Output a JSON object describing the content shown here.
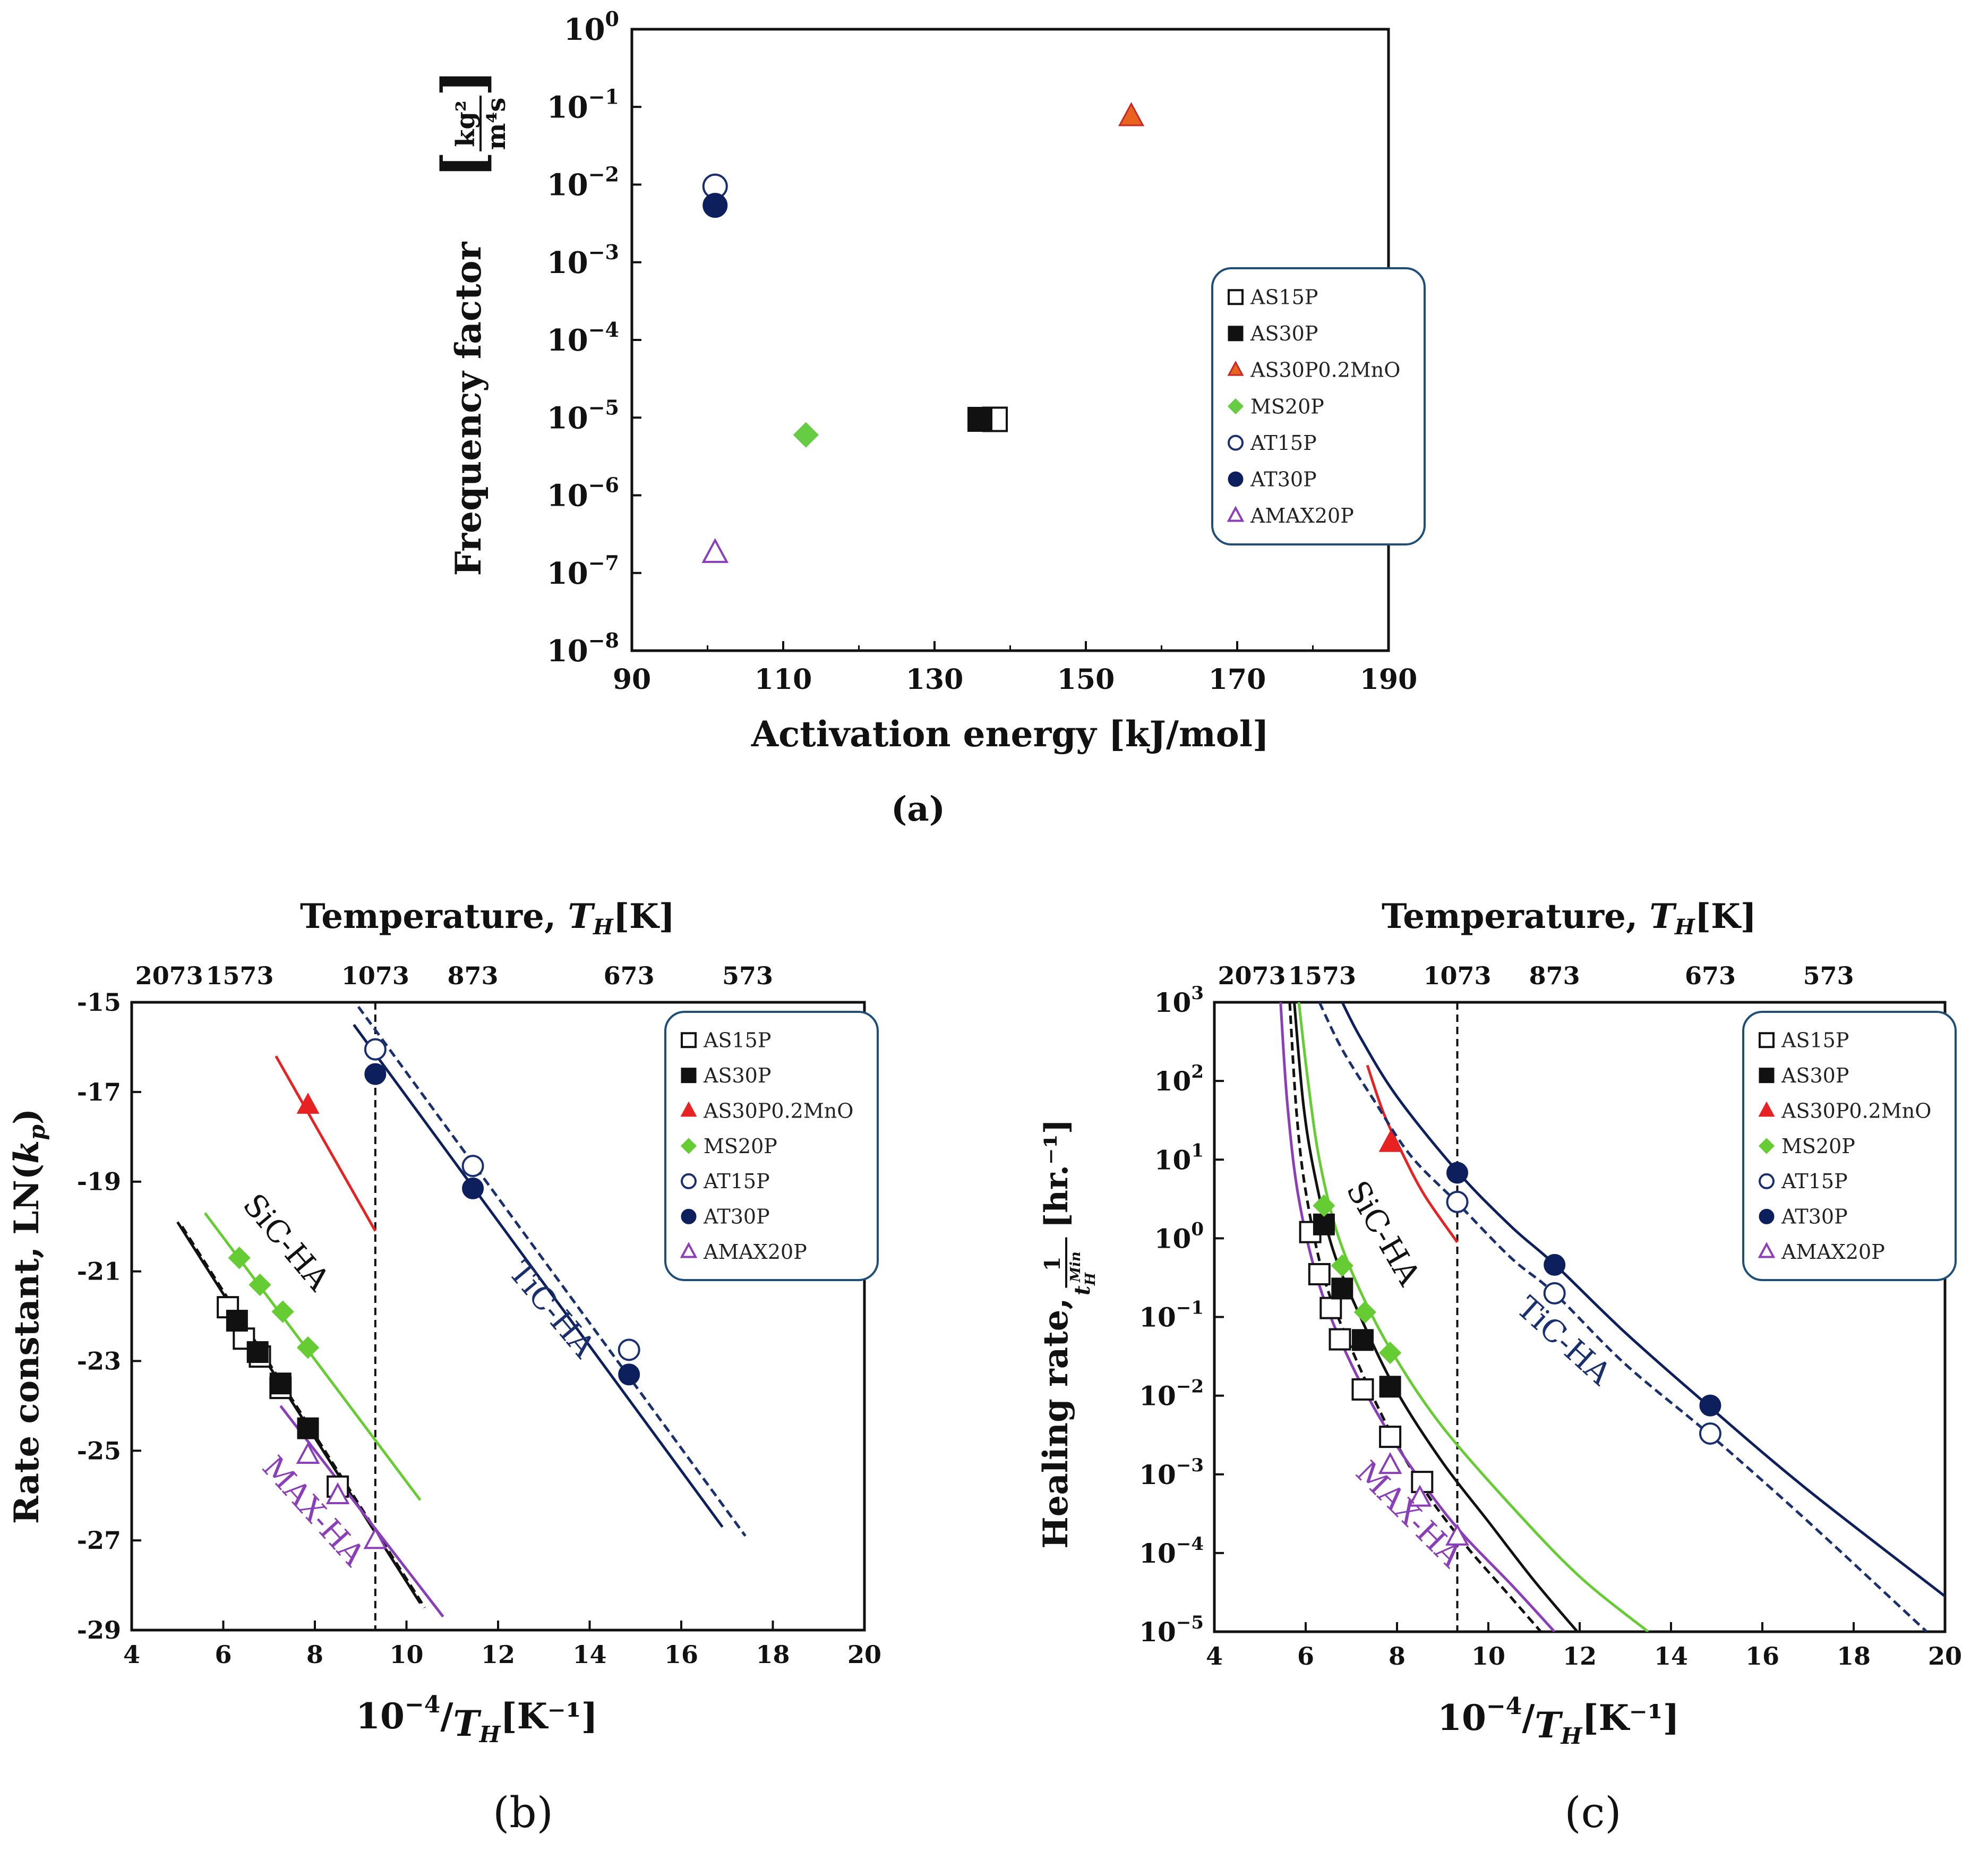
{
  "chart_data": [
    {
      "id": "a",
      "type": "scatter",
      "panel_label": "(a)",
      "xlabel": "Activation energy [kJ/mol]",
      "ylabel": "Frequency factor",
      "ylabel_unit": "[kg²/(m⁴s)]",
      "ylabel_unit_num": "kg²",
      "ylabel_unit_den": "m⁴s",
      "xlim": [
        90,
        190
      ],
      "xticks": [
        "90",
        "110",
        "130",
        "150",
        "170",
        "190"
      ],
      "ylim_log10": [
        -8,
        0
      ],
      "yticks": [
        {
          "base": "10",
          "exp": "0",
          "value": 0
        },
        {
          "base": "10",
          "exp": "−1",
          "value": -1
        },
        {
          "base": "10",
          "exp": "−2",
          "value": -2
        },
        {
          "base": "10",
          "exp": "−3",
          "value": -3
        },
        {
          "base": "10",
          "exp": "−4",
          "value": -4
        },
        {
          "base": "10",
          "exp": "−5",
          "value": -5
        },
        {
          "base": "10",
          "exp": "−6",
          "value": -6
        },
        {
          "base": "10",
          "exp": "−7",
          "value": -7
        },
        {
          "base": "10",
          "exp": "−8",
          "value": -8
        }
      ],
      "legend_position": "right",
      "series": [
        {
          "name": "AS15P",
          "marker": "square",
          "fill": "none",
          "color": "#111111",
          "x": 138,
          "y": 9.5e-06
        },
        {
          "name": "AS30P",
          "marker": "square",
          "fill": "solid",
          "color": "#111111",
          "x": 136,
          "y": 9.5e-06
        },
        {
          "name": "AS30P0.2MnO",
          "marker": "triangle",
          "fill": "solid",
          "color": "#e8641e",
          "stroke": "#c62828",
          "x": 156,
          "y": 0.075
        },
        {
          "name": "MS20P",
          "marker": "diamond",
          "fill": "solid",
          "color": "#66cc44",
          "x": 113,
          "y": 6e-06
        },
        {
          "name": "AT15P",
          "marker": "circle",
          "fill": "none",
          "color": "#1a2f6e",
          "x": 101,
          "y": 0.0095
        },
        {
          "name": "AT30P",
          "marker": "circle",
          "fill": "solid",
          "color": "#0d1f5c",
          "x": 101,
          "y": 0.0054
        },
        {
          "name": "AMAX20P",
          "marker": "triangle",
          "fill": "none",
          "color": "#8a3fb8",
          "x": 101,
          "y": 1.8e-07
        }
      ]
    },
    {
      "id": "b",
      "type": "line",
      "panel_label": "(b)",
      "top_axis_title": "Temperature,",
      "top_axis_var": "T",
      "top_axis_sub": "H",
      "top_axis_unit": "[K]",
      "top_ticks": [
        {
          "label": "2073",
          "x": 4.82
        },
        {
          "label": "1573",
          "x": 6.36
        },
        {
          "label": "1073",
          "x": 9.32
        },
        {
          "label": "873",
          "x": 11.45
        },
        {
          "label": "673",
          "x": 14.86
        },
        {
          "label": "573",
          "x": 17.45
        }
      ],
      "xlabel_prefix": "10",
      "xlabel_exp": "−4",
      "xlabel_den": "T",
      "xlabel_sub": "H",
      "xlabel_unit": "[K⁻¹]",
      "ylabel": "Rate constant, LN(",
      "ylabel_var": "k",
      "ylabel_sub": "p",
      "ylabel_close": ")",
      "xlim": [
        4,
        20
      ],
      "xticks": [
        "4",
        "6",
        "8",
        "10",
        "12",
        "14",
        "16",
        "18",
        "20"
      ],
      "ylim": [
        -29,
        -15
      ],
      "yticks": [
        "-15",
        "-17",
        "-19",
        "-21",
        "-23",
        "-25",
        "-27",
        "-29"
      ],
      "vline_x": 9.32,
      "legend_position": "top-right",
      "annotations": [
        {
          "text": "SiC-HA",
          "x": 7.2,
          "y": -20.5,
          "color": "#111111",
          "angle": 50
        },
        {
          "text": "TiC-HA",
          "x": 13.0,
          "y": -22.0,
          "color": "#1a2f6e",
          "angle": 50
        },
        {
          "text": "MAX-HA",
          "x": 7.8,
          "y": -26.5,
          "color": "#8a3fb8",
          "angle": 48
        }
      ],
      "lines": [
        {
          "name": "AS15P fit",
          "color": "#111111",
          "dash": true,
          "points": [
            [
              5.1,
              -20.0
            ],
            [
              10.4,
              -28.5
            ]
          ]
        },
        {
          "name": "AS30P fit",
          "color": "#111111",
          "dash": false,
          "points": [
            [
              5.0,
              -19.9
            ],
            [
              10.3,
              -28.4
            ]
          ]
        },
        {
          "name": "AS30P0.2MnO fit",
          "color": "#e62222",
          "dash": false,
          "points": [
            [
              7.15,
              -16.2
            ],
            [
              9.32,
              -20.1
            ]
          ]
        },
        {
          "name": "MS20P fit",
          "color": "#66cc33",
          "dash": false,
          "points": [
            [
              5.6,
              -19.7
            ],
            [
              10.3,
              -26.1
            ]
          ]
        },
        {
          "name": "AT15P fit",
          "color": "#1a2f6e",
          "dash": true,
          "points": [
            [
              8.95,
              -15.1
            ],
            [
              17.4,
              -26.9
            ]
          ]
        },
        {
          "name": "AT30P fit",
          "color": "#0d1f5c",
          "dash": false,
          "points": [
            [
              8.85,
              -15.5
            ],
            [
              16.9,
              -26.7
            ]
          ]
        },
        {
          "name": "AMAX20P fit",
          "color": "#8a3fb8",
          "dash": false,
          "points": [
            [
              7.25,
              -24.0
            ],
            [
              10.8,
              -28.7
            ]
          ]
        }
      ],
      "series": [
        {
          "name": "AS15P",
          "marker": "square",
          "fill": "none",
          "color": "#111111",
          "x": [
            6.1,
            6.45,
            6.8,
            7.25,
            8.5
          ],
          "y": [
            -21.8,
            -22.5,
            -22.9,
            -23.6,
            -25.8
          ]
        },
        {
          "name": "AS30P",
          "marker": "square",
          "fill": "solid",
          "color": "#111111",
          "x": [
            6.3,
            6.75,
            7.25,
            7.85
          ],
          "y": [
            -22.1,
            -22.8,
            -23.5,
            -24.5
          ]
        },
        {
          "name": "AS30P0.2MnO",
          "marker": "triangle",
          "fill": "solid",
          "color": "#e62222",
          "x": [
            7.85
          ],
          "y": [
            -17.3
          ]
        },
        {
          "name": "MS20P",
          "marker": "diamond",
          "fill": "solid",
          "color": "#66cc33",
          "x": [
            6.35,
            6.8,
            7.3,
            7.85
          ],
          "y": [
            -20.7,
            -21.3,
            -21.9,
            -22.7
          ]
        },
        {
          "name": "AT15P",
          "marker": "circle",
          "fill": "none",
          "color": "#1a2f6e",
          "x": [
            9.32,
            11.45,
            14.86
          ],
          "y": [
            -16.05,
            -18.65,
            -22.75
          ]
        },
        {
          "name": "AT30P",
          "marker": "circle",
          "fill": "solid",
          "color": "#0d1f5c",
          "x": [
            9.32,
            11.45,
            14.86
          ],
          "y": [
            -16.6,
            -19.15,
            -23.3
          ]
        },
        {
          "name": "AMAX20P",
          "marker": "triangle",
          "fill": "none",
          "color": "#8a3fb8",
          "x": [
            7.85,
            8.5,
            9.32
          ],
          "y": [
            -25.1,
            -26.0,
            -27.0
          ]
        }
      ]
    },
    {
      "id": "c",
      "type": "line",
      "panel_label": "(c)",
      "top_axis_title": "Temperature,",
      "top_axis_var": "T",
      "top_axis_sub": "H",
      "top_axis_unit": "[K]",
      "top_ticks": [
        {
          "label": "2073",
          "x": 4.82
        },
        {
          "label": "1573",
          "x": 6.36
        },
        {
          "label": "1073",
          "x": 9.32
        },
        {
          "label": "873",
          "x": 11.45
        },
        {
          "label": "673",
          "x": 14.86
        },
        {
          "label": "573",
          "x": 17.45
        }
      ],
      "xlabel_prefix": "10",
      "xlabel_exp": "−4",
      "xlabel_den": "T",
      "xlabel_sub": "H",
      "xlabel_unit": "[K⁻¹]",
      "ylabel": "Healing rate,",
      "ylabel_frac_num": "1",
      "ylabel_frac_den": "t",
      "ylabel_frac_sub": "H",
      "ylabel_frac_sup": "Min",
      "ylabel_unit": "[hr.⁻¹]",
      "xlim": [
        4,
        20
      ],
      "xticks": [
        "4",
        "6",
        "8",
        "10",
        "12",
        "14",
        "16",
        "18",
        "20"
      ],
      "ylim_log10": [
        -5,
        3
      ],
      "yticks": [
        {
          "base": "10",
          "exp": "3",
          "value": 3
        },
        {
          "base": "10",
          "exp": "2",
          "value": 2
        },
        {
          "base": "10",
          "exp": "1",
          "value": 1
        },
        {
          "base": "10",
          "exp": "0",
          "value": 0
        },
        {
          "base": "10",
          "exp": "−1",
          "value": -1
        },
        {
          "base": "10",
          "exp": "−2",
          "value": -2
        },
        {
          "base": "10",
          "exp": "−3",
          "value": -3
        },
        {
          "base": "10",
          "exp": "−4",
          "value": -4
        },
        {
          "base": "10",
          "exp": "−5",
          "value": -5
        }
      ],
      "vline_x": 9.32,
      "legend_position": "top-right",
      "annotations": [
        {
          "text": "SiC-HA",
          "x": 7.5,
          "y": 0.0,
          "color": "#111111",
          "angle": 60
        },
        {
          "text": "TiC-HA",
          "x": 11.5,
          "y": -1.4,
          "color": "#1a2f6e",
          "angle": 42
        },
        {
          "text": "MAX-HA",
          "x": 8.1,
          "y": -3.6,
          "color": "#8a3fb8",
          "angle": 45
        }
      ],
      "curves": [
        {
          "name": "AS15P fit",
          "color": "#111111",
          "dash": true,
          "log_points": [
            [
              5.65,
              3.0
            ],
            [
              5.8,
              1.6
            ],
            [
              6.0,
              0.6
            ],
            [
              6.4,
              -0.5
            ],
            [
              7.0,
              -1.4
            ],
            [
              7.8,
              -2.4
            ],
            [
              8.6,
              -3.2
            ],
            [
              9.5,
              -3.9
            ],
            [
              10.4,
              -4.5
            ],
            [
              11.15,
              -5.0
            ]
          ]
        },
        {
          "name": "AS30P fit",
          "color": "#111111",
          "dash": false,
          "log_points": [
            [
              5.75,
              3.0
            ],
            [
              5.95,
              1.7
            ],
            [
              6.2,
              0.8
            ],
            [
              6.6,
              -0.15
            ],
            [
              7.2,
              -1.0
            ],
            [
              8.0,
              -1.95
            ],
            [
              9.0,
              -2.85
            ],
            [
              10.0,
              -3.6
            ],
            [
              11.0,
              -4.35
            ],
            [
              11.95,
              -5.0
            ]
          ]
        },
        {
          "name": "AS30P0.2MnO fit",
          "color": "#e62222",
          "dash": false,
          "log_points": [
            [
              7.35,
              2.2
            ],
            [
              7.7,
              1.6
            ],
            [
              8.1,
              1.1
            ],
            [
              8.6,
              0.55
            ],
            [
              9.32,
              -0.05
            ]
          ]
        },
        {
          "name": "MS20P fit",
          "color": "#66cc33",
          "dash": false,
          "log_points": [
            [
              5.85,
              3.0
            ],
            [
              6.05,
              2.0
            ],
            [
              6.3,
              1.0
            ],
            [
              6.7,
              0.05
            ],
            [
              7.3,
              -0.8
            ],
            [
              8.0,
              -1.55
            ],
            [
              9.0,
              -2.4
            ],
            [
              10.5,
              -3.4
            ],
            [
              12.0,
              -4.3
            ],
            [
              13.5,
              -5.0
            ]
          ]
        },
        {
          "name": "AT15P fit",
          "color": "#1a2f6e",
          "dash": true,
          "log_points": [
            [
              6.3,
              3.0
            ],
            [
              6.8,
              2.4
            ],
            [
              7.5,
              1.75
            ],
            [
              8.3,
              1.05
            ],
            [
              9.32,
              0.45
            ],
            [
              10.5,
              -0.25
            ],
            [
              11.45,
              -0.7
            ],
            [
              13.0,
              -1.6
            ],
            [
              14.86,
              -2.5
            ],
            [
              17.0,
              -3.6
            ],
            [
              19.6,
              -5.0
            ]
          ]
        },
        {
          "name": "AT30P fit",
          "color": "#0d1f5c",
          "dash": false,
          "log_points": [
            [
              6.8,
              3.0
            ],
            [
              7.2,
              2.55
            ],
            [
              8.0,
              1.8
            ],
            [
              9.32,
              0.85
            ],
            [
              10.5,
              0.15
            ],
            [
              11.45,
              -0.33
            ],
            [
              13.0,
              -1.2
            ],
            [
              14.86,
              -2.15
            ],
            [
              17.0,
              -3.2
            ],
            [
              20.0,
              -4.55
            ]
          ]
        },
        {
          "name": "AMAX20P fit",
          "color": "#8a3fb8",
          "dash": false,
          "log_points": [
            [
              5.45,
              3.0
            ],
            [
              5.6,
              1.7
            ],
            [
              5.85,
              0.5
            ],
            [
              6.3,
              -0.6
            ],
            [
              7.0,
              -1.6
            ],
            [
              7.9,
              -2.55
            ],
            [
              8.8,
              -3.3
            ],
            [
              9.5,
              -3.8
            ],
            [
              10.5,
              -4.4
            ],
            [
              11.45,
              -5.0
            ]
          ]
        }
      ],
      "series": [
        {
          "name": "AS15P",
          "marker": "square",
          "fill": "none",
          "color": "#111111",
          "x": [
            6.1,
            6.3,
            6.55,
            6.75,
            7.25,
            7.85,
            8.55
          ],
          "y": [
            1.2,
            0.35,
            0.13,
            0.052,
            0.012,
            0.003,
            0.0008
          ]
        },
        {
          "name": "AS30P",
          "marker": "square",
          "fill": "solid",
          "color": "#111111",
          "x": [
            6.4,
            6.8,
            7.25,
            7.85
          ],
          "y": [
            1.5,
            0.23,
            0.051,
            0.013
          ]
        },
        {
          "name": "AS30P0.2MnO",
          "marker": "triangle",
          "fill": "solid",
          "color": "#e62222",
          "x": [
            7.85
          ],
          "y": [
            16
          ]
        },
        {
          "name": "MS20P",
          "marker": "diamond",
          "fill": "solid",
          "color": "#66cc33",
          "x": [
            6.4,
            6.8,
            7.3,
            7.85
          ],
          "y": [
            2.6,
            0.45,
            0.115,
            0.035
          ]
        },
        {
          "name": "AT15P",
          "marker": "circle",
          "fill": "none",
          "color": "#1a2f6e",
          "x": [
            9.32,
            11.45,
            14.86
          ],
          "y": [
            2.9,
            0.2,
            0.0033
          ]
        },
        {
          "name": "AT30P",
          "marker": "circle",
          "fill": "solid",
          "color": "#0d1f5c",
          "x": [
            9.32,
            11.45,
            14.86
          ],
          "y": [
            6.8,
            0.46,
            0.0075
          ]
        },
        {
          "name": "AMAX20P",
          "marker": "triangle",
          "fill": "none",
          "color": "#8a3fb8",
          "x": [
            7.85,
            8.5,
            9.32
          ],
          "y": [
            0.0013,
            0.0005,
            0.00016
          ]
        }
      ]
    }
  ]
}
